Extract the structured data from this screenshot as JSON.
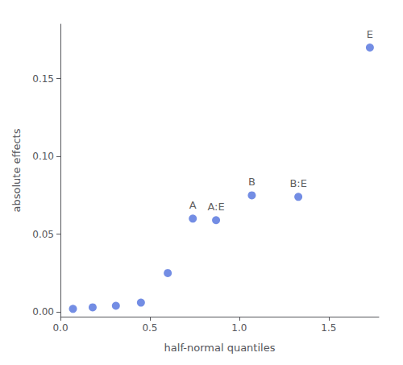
{
  "chart_data": {
    "type": "scatter",
    "x": [
      0.07,
      0.18,
      0.31,
      0.45,
      0.6,
      0.74,
      0.87,
      1.07,
      1.33,
      1.73
    ],
    "values": [
      0.002,
      0.003,
      0.004,
      0.006,
      0.025,
      0.06,
      0.059,
      0.075,
      0.074,
      0.17
    ],
    "labels": [
      null,
      null,
      null,
      null,
      null,
      "A",
      "A:E",
      "B",
      "B:E",
      "E"
    ],
    "xlabel": "half-normal quantiles",
    "ylabel": "absolute effects",
    "xlim": [
      0.0,
      1.78
    ],
    "ylim": [
      -0.003,
      0.185
    ],
    "xticks": [
      {
        "value": 0,
        "label": "0.0"
      },
      0.5,
      {
        "value": 1,
        "label": "1.0"
      },
      1.5
    ],
    "yticks": [
      {
        "value": 0,
        "label": "0.00"
      },
      0.05,
      {
        "value": 0.1,
        "label": "0.10"
      },
      0.15
    ],
    "marker": "circle",
    "grid": false
  }
}
